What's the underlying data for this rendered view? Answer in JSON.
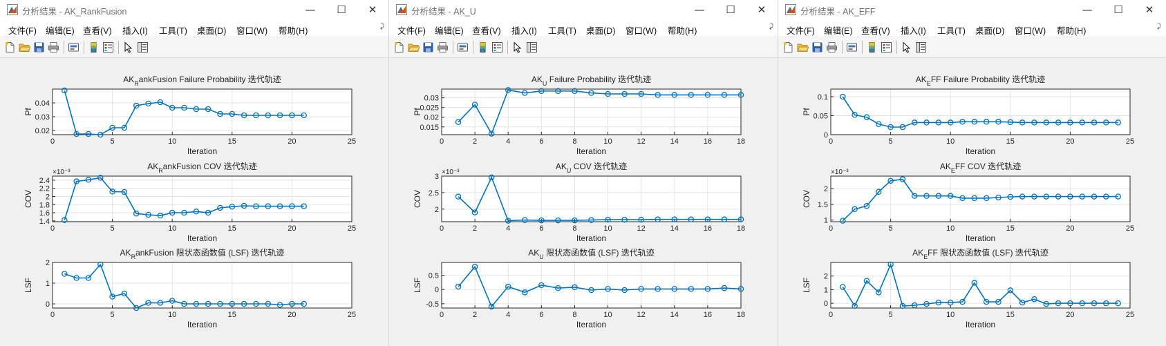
{
  "windows": [
    {
      "id": "w1",
      "title": "分析结果 - AK_RankFusion",
      "menu": [
        "文件(F)",
        "编辑(E)",
        "查看(V)",
        "插入(I)",
        "工具(T)",
        "桌面(D)",
        "窗口(W)",
        "帮助(H)"
      ],
      "chart_data": [
        {
          "type": "line",
          "title": [
            "AK",
            "R",
            "ankFusion Failure Probability 迭代轨迹"
          ],
          "xlabel": "Iteration",
          "ylabel": "Pf",
          "xlim": [
            0,
            25
          ],
          "ylim": [
            0.017,
            0.05
          ],
          "xticks": [
            0,
            5,
            10,
            15,
            20,
            25
          ],
          "yticks": [
            0.02,
            0.03,
            0.04
          ],
          "ytick_labels": [
            "0.02",
            "0.03",
            "0.04"
          ],
          "exponent": "",
          "grid": true,
          "x": [
            1,
            2,
            3,
            4,
            5,
            6,
            7,
            8,
            9,
            10,
            11,
            12,
            13,
            14,
            15,
            16,
            17,
            18,
            19,
            20,
            21
          ],
          "values": [
            0.049,
            0.0175,
            0.0175,
            0.017,
            0.022,
            0.022,
            0.038,
            0.0395,
            0.0405,
            0.0365,
            0.0365,
            0.0355,
            0.0355,
            0.032,
            0.032,
            0.031,
            0.031,
            0.031,
            0.031,
            0.031,
            0.031
          ],
          "color": "#0072BD"
        },
        {
          "type": "line",
          "title": [
            "AK",
            "R",
            "ankFusion COV 迭代轨迹"
          ],
          "xlabel": "Iteration",
          "ylabel": "COV",
          "xlim": [
            0,
            25
          ],
          "ylim": [
            1.38,
            2.5
          ],
          "xticks": [
            0,
            5,
            10,
            15,
            20,
            25
          ],
          "yticks": [
            1.4,
            1.6,
            1.8,
            2.0,
            2.2,
            2.4
          ],
          "ytick_labels": [
            "1.4",
            "1.6",
            "1.8",
            "2",
            "2.2",
            "2.4"
          ],
          "exponent": "×10⁻³",
          "grid": true,
          "x": [
            1,
            2,
            3,
            4,
            5,
            6,
            7,
            8,
            9,
            10,
            11,
            12,
            13,
            14,
            15,
            16,
            17,
            18,
            19,
            20,
            21
          ],
          "values": [
            1.42,
            2.37,
            2.41,
            2.46,
            2.12,
            2.11,
            1.58,
            1.55,
            1.53,
            1.6,
            1.6,
            1.63,
            1.6,
            1.72,
            1.75,
            1.77,
            1.76,
            1.76,
            1.76,
            1.76,
            1.76
          ],
          "color": "#0072BD"
        },
        {
          "type": "line",
          "title": [
            "AK",
            "R",
            "ankFusion 限状态函数值 (LSF) 迭代轨迹"
          ],
          "xlabel": "Iteration",
          "ylabel": "LSF",
          "xlim": [
            0,
            25
          ],
          "ylim": [
            -0.2,
            2
          ],
          "xticks": [
            0,
            5,
            10,
            15,
            20,
            25
          ],
          "yticks": [
            0,
            1,
            2
          ],
          "ytick_labels": [
            "0",
            "1",
            "2"
          ],
          "exponent": "",
          "grid": true,
          "x": [
            1,
            2,
            3,
            4,
            5,
            6,
            7,
            8,
            9,
            10,
            11,
            12,
            13,
            14,
            15,
            16,
            17,
            18,
            19,
            20,
            21
          ],
          "values": [
            1.45,
            1.25,
            1.25,
            1.9,
            0.35,
            0.5,
            -0.2,
            0.05,
            0.05,
            0.15,
            0.0,
            0.0,
            0.0,
            0.0,
            0.0,
            0.0,
            0.0,
            0.0,
            -0.05,
            0.0,
            0.0
          ],
          "color": "#0072BD"
        }
      ]
    },
    {
      "id": "w2",
      "title": "分析结果 - AK_U",
      "menu": [
        "文件(F)",
        "编辑(E)",
        "查看(V)",
        "插入(I)",
        "工具(T)",
        "桌面(D)",
        "窗口(W)",
        "帮助(H)"
      ],
      "chart_data": [
        {
          "type": "line",
          "title": [
            "AK",
            "U",
            " Failure Probability 迭代轨迹"
          ],
          "xlabel": "Iteration",
          "ylabel": "Pf",
          "xlim": [
            0,
            18
          ],
          "ylim": [
            0.011,
            0.0345
          ],
          "xticks": [
            0,
            2,
            4,
            6,
            8,
            10,
            12,
            14,
            16,
            18
          ],
          "yticks": [
            0.015,
            0.02,
            0.025,
            0.03
          ],
          "ytick_labels": [
            "0.015",
            "0.02",
            "0.025",
            "0.03"
          ],
          "exponent": "",
          "grid": true,
          "x": [
            1,
            2,
            3,
            4,
            5,
            6,
            7,
            8,
            9,
            10,
            11,
            12,
            13,
            14,
            15,
            16,
            17,
            18
          ],
          "values": [
            0.0175,
            0.0265,
            0.0115,
            0.034,
            0.0325,
            0.0335,
            0.0335,
            0.0335,
            0.0325,
            0.032,
            0.032,
            0.032,
            0.0315,
            0.0315,
            0.0315,
            0.0315,
            0.0315,
            0.0315
          ],
          "color": "#0072BD"
        },
        {
          "type": "line",
          "title": [
            "AK",
            "U",
            " COV 迭代轨迹"
          ],
          "xlabel": "Iteration",
          "ylabel": "COV",
          "xlim": [
            0,
            18
          ],
          "ylim": [
            1.62,
            3.0
          ],
          "xticks": [
            0,
            2,
            4,
            6,
            8,
            10,
            12,
            14,
            16,
            18
          ],
          "yticks": [
            2,
            2.5,
            3
          ],
          "ytick_labels": [
            "2",
            "2.5",
            "3"
          ],
          "exponent": "×10⁻³",
          "grid": true,
          "x": [
            1,
            2,
            3,
            4,
            5,
            6,
            7,
            8,
            9,
            10,
            11,
            12,
            13,
            14,
            15,
            16,
            17,
            18
          ],
          "values": [
            2.38,
            1.9,
            2.96,
            1.65,
            1.67,
            1.66,
            1.66,
            1.66,
            1.67,
            1.68,
            1.68,
            1.68,
            1.69,
            1.69,
            1.69,
            1.69,
            1.69,
            1.69
          ],
          "color": "#0072BD"
        },
        {
          "type": "line",
          "title": [
            "AK",
            "U",
            " 限状态函数值 (LSF) 迭代轨迹"
          ],
          "xlabel": "Iteration",
          "ylabel": "LSF",
          "xlim": [
            0,
            18
          ],
          "ylim": [
            -0.65,
            0.95
          ],
          "xticks": [
            0,
            2,
            4,
            6,
            8,
            10,
            12,
            14,
            16,
            18
          ],
          "yticks": [
            -0.5,
            0,
            0.5
          ],
          "ytick_labels": [
            "-0.5",
            "0",
            "0.5"
          ],
          "exponent": "",
          "grid": true,
          "x": [
            1,
            2,
            3,
            4,
            5,
            6,
            7,
            8,
            9,
            10,
            11,
            12,
            13,
            14,
            15,
            16,
            17,
            18
          ],
          "values": [
            0.1,
            0.8,
            -0.6,
            0.1,
            -0.1,
            0.15,
            0.05,
            0.08,
            -0.02,
            0.02,
            -0.02,
            0.02,
            0.02,
            0.02,
            0.02,
            0.02,
            0.05,
            0.02
          ],
          "color": "#0072BD"
        }
      ]
    },
    {
      "id": "w3",
      "title": "分析结果 - AK_EFF",
      "menu": [
        "文件(F)",
        "编辑(E)",
        "查看(V)",
        "插入(I)",
        "工具(T)",
        "桌面(D)",
        "窗口(W)",
        "帮助(H)"
      ],
      "chart_data": [
        {
          "type": "line",
          "title": [
            "AK",
            "E",
            "FF Failure Probability 迭代轨迹"
          ],
          "xlabel": "Iteration",
          "ylabel": "Pf",
          "xlim": [
            0,
            25
          ],
          "ylim": [
            0,
            0.12
          ],
          "xticks": [
            0,
            5,
            10,
            15,
            20,
            25
          ],
          "yticks": [
            0,
            0.05,
            0.1
          ],
          "ytick_labels": [
            "0",
            "0.05",
            "0.1"
          ],
          "exponent": "",
          "grid": true,
          "x": [
            1,
            2,
            3,
            4,
            5,
            6,
            7,
            8,
            9,
            10,
            11,
            12,
            13,
            14,
            15,
            16,
            17,
            18,
            19,
            20,
            21,
            22,
            23,
            24
          ],
          "values": [
            0.1,
            0.052,
            0.046,
            0.028,
            0.02,
            0.02,
            0.032,
            0.032,
            0.032,
            0.032,
            0.034,
            0.034,
            0.034,
            0.034,
            0.033,
            0.032,
            0.032,
            0.032,
            0.032,
            0.032,
            0.032,
            0.032,
            0.032,
            0.032
          ],
          "color": "#0072BD"
        },
        {
          "type": "line",
          "title": [
            "AK",
            "E",
            "FF COV 迭代轨迹"
          ],
          "xlabel": "Iteration",
          "ylabel": "COV",
          "xlim": [
            0,
            25
          ],
          "ylim": [
            0.95,
            2.4
          ],
          "xticks": [
            0,
            5,
            10,
            15,
            20,
            25
          ],
          "yticks": [
            1,
            1.5,
            2
          ],
          "ytick_labels": [
            "1",
            "1.5",
            "2"
          ],
          "exponent": "×10⁻³",
          "grid": true,
          "x": [
            1,
            2,
            3,
            4,
            5,
            6,
            7,
            8,
            9,
            10,
            11,
            12,
            13,
            14,
            15,
            16,
            17,
            18,
            19,
            20,
            21,
            22,
            23,
            24
          ],
          "values": [
            0.98,
            1.35,
            1.45,
            1.9,
            2.25,
            2.3,
            1.77,
            1.77,
            1.77,
            1.77,
            1.7,
            1.7,
            1.7,
            1.72,
            1.74,
            1.75,
            1.75,
            1.75,
            1.75,
            1.75,
            1.75,
            1.75,
            1.75,
            1.75
          ],
          "color": "#0072BD"
        },
        {
          "type": "line",
          "title": [
            "AK",
            "E",
            "FF 限状态函数值 (LSF) 迭代轨迹"
          ],
          "xlabel": "Iteration",
          "ylabel": "LSF",
          "xlim": [
            0,
            25
          ],
          "ylim": [
            -0.35,
            3.0
          ],
          "xticks": [
            0,
            5,
            10,
            15,
            20,
            25
          ],
          "yticks": [
            0,
            1,
            2
          ],
          "ytick_labels": [
            "0",
            "1",
            "2"
          ],
          "exponent": "",
          "grid": true,
          "x": [
            1,
            2,
            3,
            4,
            5,
            6,
            7,
            8,
            9,
            10,
            11,
            12,
            13,
            14,
            15,
            16,
            17,
            18,
            19,
            20,
            21,
            22,
            23,
            24
          ],
          "values": [
            1.2,
            -0.2,
            1.65,
            0.8,
            2.85,
            -0.2,
            -0.15,
            -0.05,
            0.05,
            0.05,
            0.1,
            1.5,
            0.1,
            0.1,
            0.95,
            0.05,
            0.3,
            -0.05,
            0.0,
            0.0,
            0.0,
            0.0,
            0.0,
            0.0
          ],
          "color": "#0072BD"
        }
      ]
    }
  ]
}
